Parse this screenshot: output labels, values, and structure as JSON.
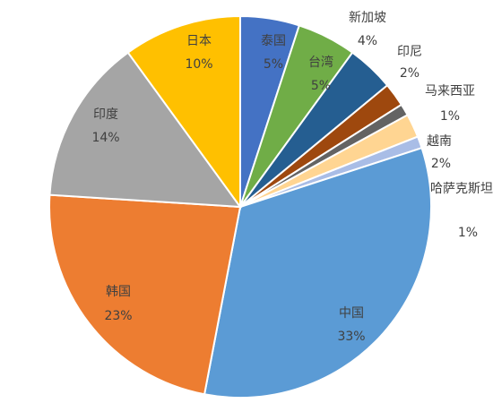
{
  "chart_data": {
    "type": "pie",
    "categories": [
      "泰国",
      "台湾",
      "新加坡",
      "印尼",
      "马来西亚",
      "越南",
      "哈萨克斯坦",
      "中国",
      "韩国",
      "印度",
      "日本"
    ],
    "values": [
      5,
      5,
      4,
      2,
      1,
      2,
      1,
      33,
      23,
      14,
      10
    ],
    "value_labels": [
      "5%",
      "5%",
      "4%",
      "2%",
      "1%",
      "2%",
      "1%",
      "33%",
      "23%",
      "14%",
      "10%"
    ],
    "colors": [
      "#4472c4",
      "#70ad47",
      "#255e91",
      "#9e480e",
      "#636363",
      "#ffd592",
      "#a9bde6",
      "#5b9bd5",
      "#ed7d31",
      "#a5a5a5",
      "#ffc000"
    ]
  }
}
